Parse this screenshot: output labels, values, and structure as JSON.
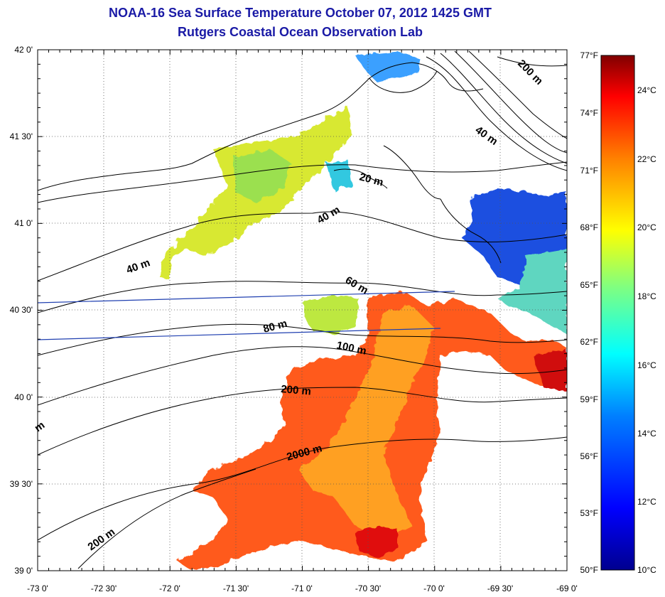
{
  "titles": {
    "line1": "NOAA-16 Sea Surface Temperature October 07, 2012 1425 GMT",
    "line2": "Rutgers Coastal Ocean Observation Lab"
  },
  "map": {
    "lon_labels": [
      "-73 0'",
      "-72 30'",
      "-72 0'",
      "-71 30'",
      "-71 0'",
      "-70 30'",
      "-70 0'",
      "-69 30'",
      "-69 0'"
    ],
    "lat_labels": [
      "42 0'",
      "41 30'",
      "41 0'",
      "40 30'",
      "40 0'",
      "39 30'",
      "39 0'"
    ],
    "contour_labels": [
      "200 m",
      "40 m",
      "20 m",
      "40 m",
      "40 m",
      "60 m",
      "80 m",
      "100 m",
      "200 m",
      "2000 m",
      "200 m",
      "m"
    ],
    "colors": {
      "land_outline": "#000000",
      "transect_line": "#1f3fb0",
      "grid": "#555555"
    }
  },
  "colorbar": {
    "fahrenheit_labels": [
      "77°F",
      "74°F",
      "71°F",
      "68°F",
      "65°F",
      "62°F",
      "59°F",
      "56°F",
      "53°F",
      "50°F"
    ],
    "celsius_labels": [
      "24°C",
      "22°C",
      "20°C",
      "18°C",
      "16°C",
      "14°C",
      "12°C",
      "10°C"
    ],
    "colormap": [
      "#00008f",
      "#0000ff",
      "#0080ff",
      "#00ffff",
      "#80ff80",
      "#ffff00",
      "#ff8000",
      "#ff0000",
      "#800000"
    ]
  }
}
